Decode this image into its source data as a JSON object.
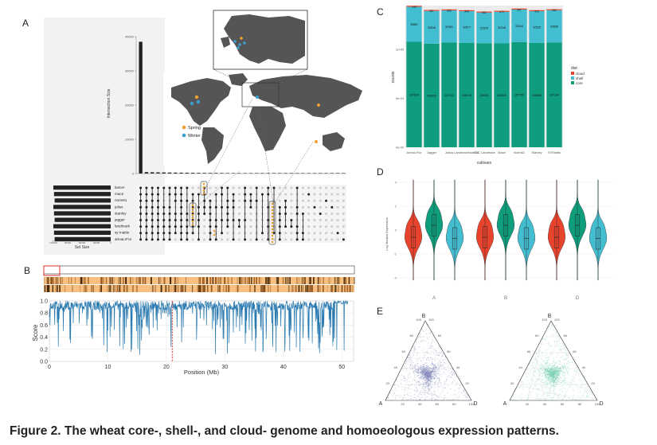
{
  "caption": {
    "label": "Figure 2",
    "separator": ". ",
    "text": "The wheat core-, shell-, and cloud- genome and homoeologous expression patterns."
  },
  "panelA": {
    "letter": "A",
    "intersection_axis": {
      "label": "Intersection Size",
      "ticks": [
        "40000",
        "30000",
        "20000",
        "10000",
        "0"
      ]
    },
    "set_size_axis": {
      "label": "Set Size",
      "ticks": [
        "120000",
        "90000",
        "60000",
        "30000",
        "0"
      ]
    },
    "cultivars": [
      "lancer",
      "mace",
      "norin61",
      "julius",
      "stanley",
      "jagger",
      "landmark",
      "sy mattis",
      "arinaLrFor"
    ],
    "legend": [
      {
        "label": "Spring",
        "color": "#f0a030"
      },
      {
        "label": "Winter",
        "color": "#3aa0d0"
      }
    ],
    "colors": {
      "map": "#555555",
      "pin_spring": "#f0a030",
      "pin_winter": "#3aa0d0",
      "highlight": "#f0a030"
    }
  },
  "panelB": {
    "letter": "B",
    "ylabel": "Score",
    "xlabel": "Position (Mb)",
    "yticks": [
      "1.0",
      "0.8",
      "0.6",
      "0.4",
      "0.2",
      "0.0"
    ],
    "xticks": [
      "0",
      "10",
      "20",
      "30",
      "40",
      "50"
    ],
    "marker_position_mb": 21,
    "colors": {
      "line": "#2a7ab0",
      "marker": "#e03030",
      "heat": "#f8c080",
      "heat_dark": "#3a2000"
    }
  },
  "panelC": {
    "letter": "C",
    "ylabel": "counts",
    "xlabel": "cultivars",
    "yticks": [
      "1e+05",
      "5e+04",
      "0e+00"
    ],
    "legend_title": "dist",
    "legend": [
      {
        "label": "cloud",
        "color": "#e8432d"
      },
      {
        "label": "shell",
        "color": "#43bdd0"
      },
      {
        "label": "core",
        "color": "#0e9e7d"
      }
    ],
    "categories": [
      "ArinaLrFor",
      "Jagger",
      "Julius",
      "LandmarkNorin61",
      "CDC Landmark",
      "Mace",
      "Norin61",
      "Stanley",
      "SYMattis"
    ],
    "cloud": [
      "449",
      "467",
      "502",
      "340",
      "502",
      "470",
      "497",
      "410",
      "450"
    ],
    "shell": [
      "35887",
      "33516",
      "32981",
      "32577",
      "31525",
      "32318",
      "33204",
      "32526",
      "33056"
    ],
    "core": [
      "107920",
      "106029",
      "107101",
      "106749",
      "106391",
      "106320",
      "107750",
      "106805",
      "107194"
    ]
  },
  "panelD": {
    "letter": "D",
    "ylabel": "Log Median Expression",
    "yticks": [
      "4",
      "2",
      "0",
      "-2",
      "-4"
    ],
    "groups": [
      "A",
      "B",
      "D"
    ],
    "colors": [
      "#e8432d",
      "#0e9e7d",
      "#43bdd0"
    ]
  },
  "panelE": {
    "letter": "E",
    "vertices": {
      "top": "B",
      "left": "A",
      "right": "D"
    },
    "ticks": [
      "20",
      "40",
      "60",
      "80",
      "100"
    ],
    "colors": [
      "#8a90c0",
      "#7fd4b8"
    ]
  },
  "chart_data": [
    {
      "type": "bar",
      "stacked": true,
      "categories": [
        "ArinaLrFor",
        "Jagger",
        "Julius",
        "LandmarkNorin61",
        "CDC Landmark",
        "Mace",
        "Norin61",
        "Stanley",
        "SYMattis"
      ],
      "series": [
        {
          "name": "core",
          "values": [
            107920,
            106029,
            107101,
            106749,
            106391,
            106320,
            107750,
            106805,
            107194
          ]
        },
        {
          "name": "shell",
          "values": [
            35887,
            33516,
            32981,
            32577,
            31525,
            32318,
            33204,
            32526,
            33056
          ]
        },
        {
          "name": "cloud",
          "values": [
            449,
            467,
            502,
            340,
            502,
            470,
            497,
            410,
            450
          ]
        }
      ],
      "xlabel": "cultivars",
      "ylabel": "counts"
    },
    {
      "type": "bar",
      "values": [
        38500,
        420,
        380,
        350,
        320,
        300,
        280,
        260,
        240,
        220,
        200,
        190,
        180,
        170,
        160,
        150,
        140,
        130,
        120,
        110,
        100,
        95,
        90,
        85,
        80,
        75,
        70,
        65,
        60,
        55,
        50,
        45,
        40,
        35,
        30,
        25
      ],
      "xlabel": "",
      "ylabel": "Intersection Size",
      "ylim": [
        0,
        40000
      ]
    },
    {
      "type": "line",
      "xlabel": "Position (Mb)",
      "ylabel": "Score",
      "ylim": [
        0,
        1
      ],
      "xlim": [
        0,
        52
      ]
    }
  ]
}
